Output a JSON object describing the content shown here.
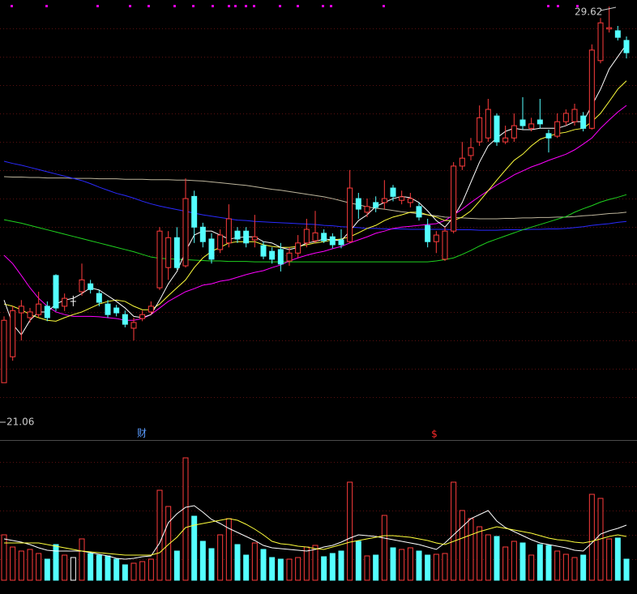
{
  "chart_data": [
    {
      "type": "candlestick",
      "ylim": [
        19.81,
        29.77
      ],
      "up_color": "#ff3c3c",
      "down_color": "#54ffff",
      "flat_color": "#ffffff",
      "open": [
        21.06,
        21.65,
        22.65,
        22.54,
        22.61,
        22.8,
        23.5,
        22.8,
        22.91,
        23.13,
        23.31,
        23.09,
        22.85,
        22.76,
        22.61,
        22.3,
        22.52,
        22.67,
        23.22,
        23.68,
        24.36,
        23.72,
        25.3,
        24.6,
        24.33,
        24.09,
        24.24,
        24.51,
        24.51,
        24.31,
        24.18,
        24.05,
        24.09,
        23.83,
        24.01,
        24.24,
        24.29,
        24.46,
        24.38,
        24.31,
        24.27,
        25.25,
        24.94,
        25.16,
        25.16,
        25.49,
        25.21,
        25.16,
        25.07,
        24.64,
        24.27,
        23.87,
        24.51,
        25.99,
        26.23,
        26.54,
        26.63,
        27.13,
        26.54,
        26.63,
        27.04,
        26.85,
        27.04,
        26.73,
        26.67,
        27.0,
        27.0,
        27.13,
        26.85,
        28.39,
        29.11,
        29.07,
        28.85
      ],
      "high": [
        22.57,
        22.8,
        22.94,
        22.76,
        23.13,
        22.91,
        23.53,
        23.09,
        23.04,
        23.77,
        23.4,
        23.17,
        22.94,
        22.83,
        22.7,
        22.54,
        22.7,
        22.91,
        24.6,
        24.51,
        24.6,
        25.71,
        25.43,
        24.7,
        24.46,
        24.55,
        25.12,
        24.6,
        24.6,
        24.88,
        24.27,
        24.14,
        24.24,
        24.14,
        24.42,
        24.79,
        24.97,
        24.55,
        24.46,
        24.55,
        25.9,
        25.38,
        25.25,
        25.3,
        25.67,
        25.56,
        25.43,
        25.38,
        25.16,
        24.79,
        24.51,
        24.6,
        26.08,
        26.54,
        26.63,
        27.37,
        27.52,
        27.19,
        26.91,
        27.19,
        27.56,
        27.09,
        27.52,
        26.82,
        27.19,
        27.28,
        27.41,
        27.22,
        28.76,
        29.36,
        29.62,
        29.18,
        28.94
      ],
      "low": [
        21.06,
        21.56,
        22.02,
        22.43,
        22.54,
        22.46,
        22.69,
        22.69,
        22.8,
        23.04,
        23.09,
        22.8,
        22.54,
        22.57,
        22.32,
        22.02,
        22.46,
        22.61,
        23.17,
        23.4,
        23.63,
        23.68,
        24.24,
        24.14,
        23.77,
        24.01,
        24.14,
        24.24,
        24.14,
        24.14,
        23.87,
        23.77,
        23.59,
        23.72,
        23.9,
        24.14,
        24.24,
        24.24,
        24.12,
        24.12,
        24.24,
        24.79,
        24.83,
        24.94,
        25.01,
        25.19,
        25.12,
        25.05,
        24.75,
        24.14,
        24.01,
        23.83,
        24.46,
        25.9,
        26.12,
        26.45,
        26.54,
        26.45,
        26.49,
        26.54,
        26.82,
        26.78,
        26.85,
        26.3,
        26.63,
        26.91,
        26.91,
        26.78,
        26.82,
        28.33,
        29.03,
        28.85,
        28.44
      ],
      "close": [
        22.48,
        22.7,
        22.8,
        22.67,
        22.85,
        22.54,
        22.76,
        22.98,
        22.91,
        23.4,
        23.18,
        22.89,
        22.61,
        22.65,
        22.39,
        22.43,
        22.61,
        22.8,
        24.51,
        24.36,
        23.68,
        25.25,
        24.6,
        24.27,
        23.87,
        24.42,
        24.79,
        24.33,
        24.24,
        24.38,
        23.94,
        23.87,
        23.76,
        24.01,
        24.24,
        24.55,
        24.47,
        24.29,
        24.2,
        24.2,
        25.49,
        25.01,
        25.07,
        25.05,
        25.25,
        25.3,
        25.29,
        25.25,
        24.83,
        24.27,
        24.42,
        24.51,
        25.99,
        26.17,
        26.41,
        27.09,
        27.28,
        26.54,
        26.63,
        26.91,
        26.91,
        26.95,
        26.95,
        26.63,
        27.0,
        27.19,
        27.28,
        26.85,
        28.63,
        29.25,
        29.14,
        28.92,
        28.57
      ],
      "series": [
        {
          "color": "#bdb59c",
          "values": [
            25.75,
            25.74,
            25.74,
            25.73,
            25.73,
            25.72,
            25.72,
            25.72,
            25.71,
            25.71,
            25.71,
            25.7,
            25.7,
            25.7,
            25.69,
            25.69,
            25.69,
            25.68,
            25.68,
            25.68,
            25.67,
            25.67,
            25.66,
            25.65,
            25.63,
            25.61,
            25.59,
            25.57,
            25.55,
            25.52,
            25.49,
            25.46,
            25.44,
            25.41,
            25.38,
            25.35,
            25.32,
            25.29,
            25.25,
            25.2,
            25.15,
            25.11,
            25.06,
            25.03,
            25.01,
            24.98,
            24.95,
            24.93,
            24.9,
            24.88,
            24.86,
            24.83,
            24.82,
            24.81,
            24.8,
            24.79,
            24.79,
            24.79,
            24.8,
            24.8,
            24.81,
            24.81,
            24.82,
            24.82,
            24.83,
            24.83,
            24.84,
            24.86,
            24.87,
            24.89,
            24.91,
            24.92,
            24.94
          ]
        },
        {
          "color": "#2a2aff",
          "values": [
            26.1,
            26.05,
            26.01,
            25.96,
            25.91,
            25.86,
            25.81,
            25.76,
            25.71,
            25.66,
            25.59,
            25.51,
            25.44,
            25.37,
            25.32,
            25.26,
            25.19,
            25.13,
            25.08,
            25.04,
            25.0,
            24.96,
            24.92,
            24.88,
            24.85,
            24.82,
            24.79,
            24.76,
            24.75,
            24.73,
            24.72,
            24.71,
            24.7,
            24.69,
            24.68,
            24.67,
            24.66,
            24.64,
            24.63,
            24.61,
            24.6,
            24.59,
            24.57,
            24.57,
            24.56,
            24.56,
            24.56,
            24.55,
            24.55,
            24.55,
            24.55,
            24.55,
            24.54,
            24.54,
            24.54,
            24.53,
            24.53,
            24.53,
            24.54,
            24.54,
            24.54,
            24.55,
            24.55,
            24.56,
            24.56,
            24.57,
            24.59,
            24.61,
            24.64,
            24.66,
            24.68,
            24.71,
            24.73
          ]
        },
        {
          "color": "#1fd21f",
          "values": [
            24.77,
            24.73,
            24.69,
            24.64,
            24.59,
            24.54,
            24.49,
            24.44,
            24.39,
            24.34,
            24.29,
            24.24,
            24.19,
            24.14,
            24.09,
            24.04,
            23.98,
            23.92,
            23.89,
            23.88,
            23.87,
            23.86,
            23.85,
            23.84,
            23.83,
            23.83,
            23.82,
            23.82,
            23.82,
            23.81,
            23.81,
            23.81,
            23.81,
            23.81,
            23.81,
            23.81,
            23.81,
            23.81,
            23.81,
            23.81,
            23.81,
            23.81,
            23.81,
            23.81,
            23.81,
            23.81,
            23.81,
            23.81,
            23.81,
            23.81,
            23.83,
            23.86,
            23.9,
            23.98,
            24.07,
            24.17,
            24.26,
            24.33,
            24.4,
            24.47,
            24.54,
            24.6,
            24.66,
            24.72,
            24.78,
            24.84,
            24.94,
            25.02,
            25.09,
            25.17,
            25.23,
            25.28,
            25.34
          ]
        },
        {
          "color": "#ff00ff",
          "values": [
            23.96,
            23.77,
            23.5,
            23.22,
            22.98,
            22.8,
            22.67,
            22.61,
            22.57,
            22.57,
            22.57,
            22.56,
            22.54,
            22.52,
            22.48,
            22.48,
            22.52,
            22.61,
            22.76,
            22.91,
            23.02,
            23.13,
            23.2,
            23.28,
            23.31,
            23.37,
            23.4,
            23.46,
            23.52,
            23.57,
            23.61,
            23.68,
            23.74,
            23.83,
            23.9,
            23.96,
            24.01,
            24.05,
            24.11,
            24.16,
            24.24,
            24.31,
            24.38,
            24.46,
            24.51,
            24.57,
            24.6,
            24.62,
            24.64,
            24.66,
            24.68,
            24.75,
            24.88,
            25.01,
            25.16,
            25.3,
            25.43,
            25.56,
            25.67,
            25.79,
            25.88,
            25.97,
            26.04,
            26.12,
            26.19,
            26.26,
            26.36,
            26.49,
            26.63,
            26.85,
            27.04,
            27.22,
            27.37
          ]
        },
        {
          "color": "#ffff3c",
          "values": [
            22.85,
            22.8,
            22.72,
            22.61,
            22.54,
            22.48,
            22.46,
            22.54,
            22.61,
            22.67,
            22.76,
            22.85,
            22.91,
            22.94,
            22.91,
            22.8,
            22.72,
            22.72,
            22.85,
            23.04,
            23.22,
            23.4,
            23.68,
            23.9,
            24.05,
            24.14,
            24.24,
            24.27,
            24.27,
            24.27,
            24.2,
            24.16,
            24.14,
            24.14,
            24.16,
            24.2,
            24.24,
            24.27,
            24.31,
            24.33,
            24.38,
            24.47,
            24.57,
            24.64,
            24.75,
            24.83,
            24.88,
            24.94,
            24.94,
            24.88,
            24.83,
            24.75,
            24.75,
            24.83,
            24.97,
            25.19,
            25.43,
            25.67,
            25.9,
            26.12,
            26.26,
            26.45,
            26.6,
            26.67,
            26.73,
            26.76,
            26.82,
            26.85,
            27.0,
            27.19,
            27.46,
            27.74,
            27.93
          ]
        },
        {
          "color": "#ffffff",
          "values": [
            22.94,
            22.39,
            22.15,
            22.48,
            22.67,
            22.67,
            22.85,
            22.94,
            22.98,
            23.09,
            23.22,
            23.17,
            23.04,
            22.91,
            22.76,
            22.57,
            22.54,
            22.61,
            22.94,
            23.31,
            23.59,
            24.05,
            24.42,
            24.51,
            24.51,
            24.42,
            24.33,
            24.36,
            24.38,
            24.38,
            24.27,
            24.24,
            24.14,
            24.09,
            24.14,
            24.24,
            24.27,
            24.33,
            24.31,
            24.29,
            24.51,
            24.75,
            24.88,
            25.07,
            25.16,
            25.25,
            25.3,
            25.27,
            25.16,
            24.97,
            24.75,
            24.6,
            24.83,
            25.16,
            25.62,
            26.08,
            26.45,
            26.63,
            26.78,
            26.85,
            26.82,
            26.82,
            26.85,
            26.85,
            26.85,
            26.91,
            27.0,
            27.0,
            27.37,
            27.74,
            28.2,
            28.48,
            28.76
          ]
        }
      ],
      "annotations": [
        {
          "text": "财",
          "color": "#5b9cff"
        },
        {
          "text": "$",
          "color": "#ff2a2a"
        }
      ]
    },
    {
      "type": "bar",
      "ylim": [
        0,
        170
      ],
      "values": [
        56,
        41,
        36,
        38,
        33,
        26,
        44,
        31,
        28,
        51,
        33,
        31,
        30,
        26,
        19,
        21,
        23,
        26,
        111,
        91,
        36,
        151,
        79,
        48,
        39,
        56,
        76,
        44,
        31,
        46,
        38,
        28,
        26,
        26,
        28,
        41,
        43,
        29,
        33,
        36,
        121,
        48,
        30,
        31,
        80,
        40,
        38,
        40,
        36,
        31,
        32,
        33,
        121,
        86,
        76,
        66,
        56,
        54,
        41,
        48,
        46,
        31,
        44,
        43,
        36,
        32,
        28,
        31,
        106,
        101,
        51,
        52,
        26
      ],
      "series": [
        {
          "color": "#ffffff",
          "values": [
            51,
            49,
            47,
            44,
            40,
            37,
            36,
            36,
            36,
            36,
            34,
            32,
            30,
            27,
            26,
            27,
            29,
            30,
            46,
            71,
            82,
            90,
            92,
            84,
            75,
            70,
            64,
            59,
            54,
            49,
            43,
            40,
            39,
            38,
            37,
            36,
            38,
            41,
            43,
            47,
            52,
            56,
            55,
            54,
            52,
            50,
            48,
            46,
            44,
            41,
            38,
            46,
            56,
            66,
            76,
            81,
            86,
            73,
            65,
            60,
            55,
            50,
            46,
            44,
            42,
            40,
            37,
            36,
            46,
            57,
            61,
            64,
            68
          ]
        },
        {
          "color": "#ffff3c",
          "values": [
            46,
            46,
            46,
            46,
            46,
            44,
            42,
            40,
            38,
            36,
            35,
            34,
            33,
            32,
            31,
            31,
            31,
            31,
            34,
            44,
            53,
            65,
            68,
            70,
            72,
            74,
            76,
            74,
            69,
            63,
            56,
            48,
            45,
            44,
            42,
            41,
            39,
            38,
            41,
            44,
            47,
            49,
            51,
            53,
            55,
            55,
            54,
            53,
            51,
            49,
            46,
            44,
            48,
            52,
            56,
            60,
            63,
            66,
            64,
            62,
            60,
            58,
            55,
            52,
            50,
            49,
            47,
            46,
            48,
            51,
            54,
            56,
            54
          ]
        }
      ]
    }
  ]
}
